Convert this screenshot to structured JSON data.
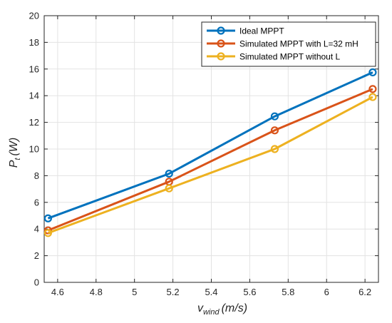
{
  "chart_data": {
    "type": "line",
    "xlabel": {
      "symbol": "v",
      "subscript": "wind",
      "unit": "(m/s)"
    },
    "ylabel": {
      "symbol": "P",
      "subscript": "t",
      "unit": "(W)"
    },
    "xlim": [
      4.53,
      6.27
    ],
    "ylim": [
      0,
      20
    ],
    "xticks": [
      "4.6",
      "4.8",
      "5",
      "5.2",
      "5.4",
      "5.6",
      "5.8",
      "6",
      "6.2"
    ],
    "yticks": [
      "0",
      "2",
      "4",
      "6",
      "8",
      "10",
      "12",
      "14",
      "16",
      "18",
      "20"
    ],
    "grid": true,
    "legend_position": "top-right",
    "x": [
      4.55,
      5.18,
      5.73,
      6.24
    ],
    "series": [
      {
        "name": "Ideal MPPT",
        "color": "#0072BD",
        "values": [
          4.8,
          8.15,
          12.45,
          15.75
        ]
      },
      {
        "name": "Simulated MPPT with L=32 mH",
        "color": "#D95319",
        "values": [
          3.9,
          7.55,
          11.4,
          14.5
        ]
      },
      {
        "name": "Simulated MPPT without L",
        "color": "#EDB120",
        "values": [
          3.7,
          7.05,
          10.0,
          13.9
        ]
      }
    ]
  }
}
